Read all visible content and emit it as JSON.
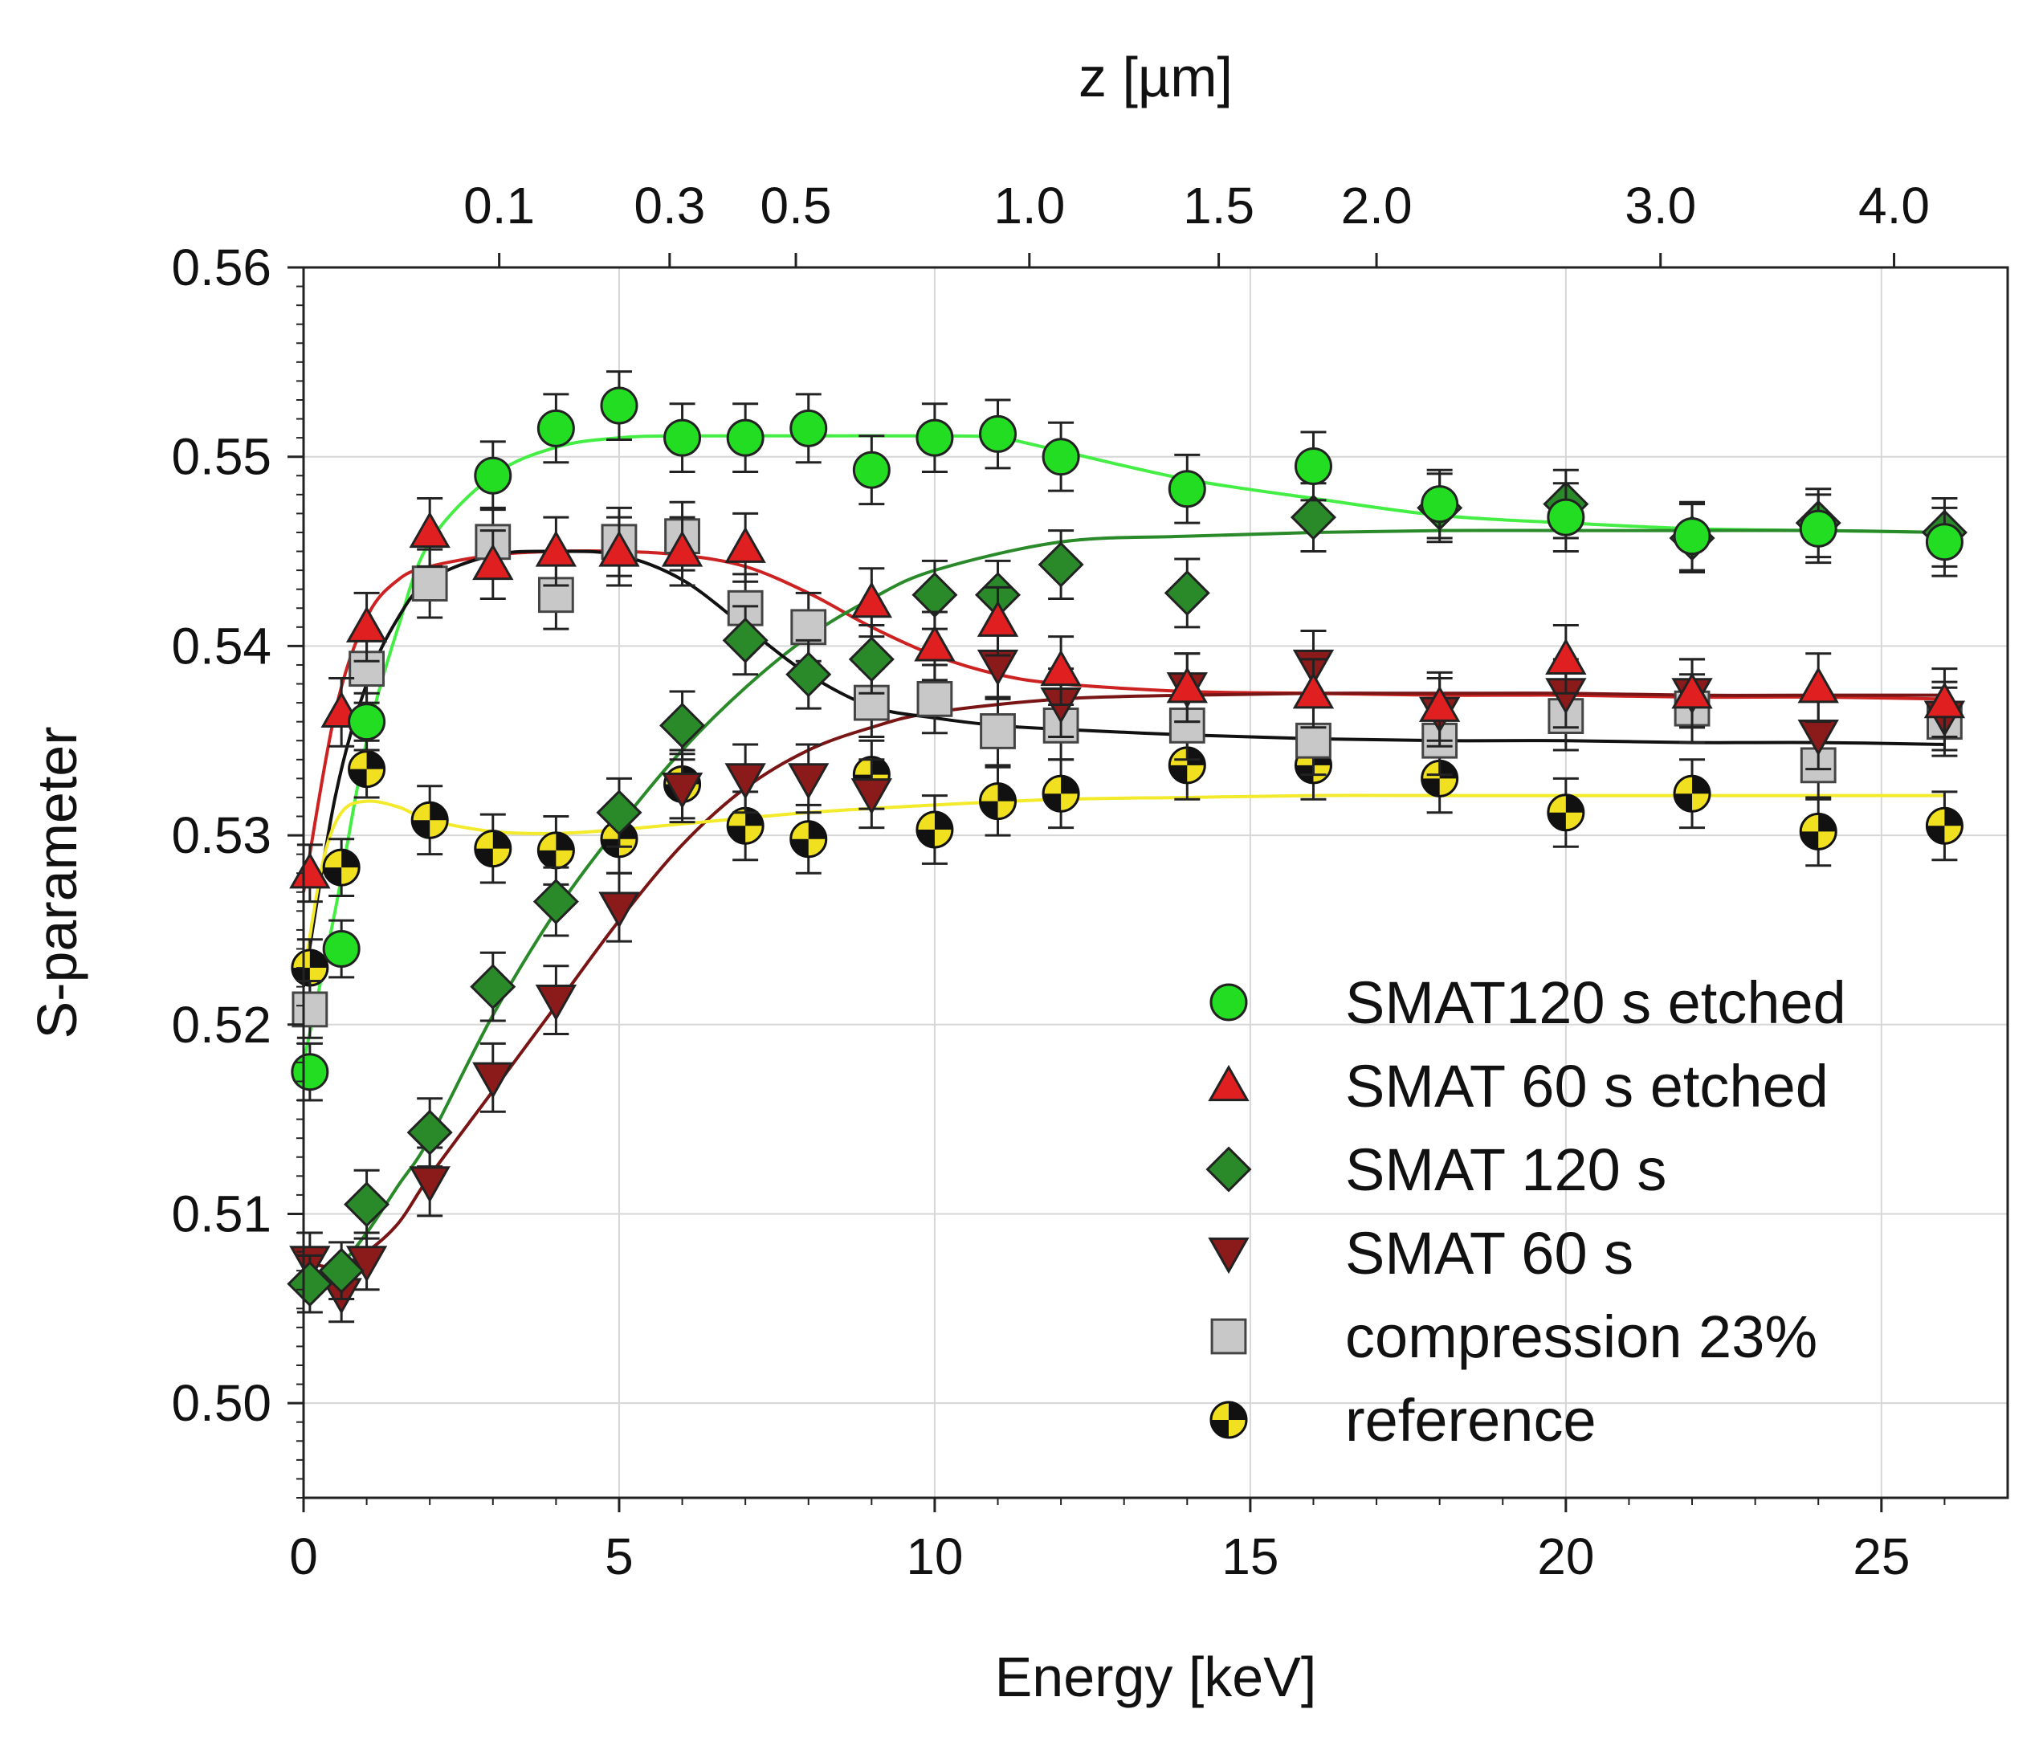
{
  "chart_data": {
    "type": "scatter",
    "title": "",
    "xlabel": "Energy [keV]",
    "ylabel": "S-parameter",
    "top_xlabel": "z [µm]",
    "xlim": [
      0,
      27
    ],
    "ylim": [
      0.495,
      0.56
    ],
    "grid": true,
    "legend_position": "lower-right",
    "x_ticks": [
      0,
      5,
      10,
      15,
      20,
      25
    ],
    "x_tick_labels": [
      "0",
      "5",
      "10",
      "15",
      "20",
      "25"
    ],
    "y_ticks": [
      0.5,
      0.51,
      0.52,
      0.53,
      0.54,
      0.55,
      0.56
    ],
    "y_tick_labels": [
      "0.50",
      "0.51",
      "0.52",
      "0.53",
      "0.54",
      "0.55",
      "0.56"
    ],
    "top_ticks": [
      {
        "label": "0.1",
        "energy": 3.1
      },
      {
        "label": "0.3",
        "energy": 5.8
      },
      {
        "label": "0.5",
        "energy": 7.8
      },
      {
        "label": "1.0",
        "energy": 11.5
      },
      {
        "label": "1.5",
        "energy": 14.5
      },
      {
        "label": "2.0",
        "energy": 17.0
      },
      {
        "label": "3.0",
        "energy": 21.5
      },
      {
        "label": "4.0",
        "energy": 25.2
      }
    ],
    "series": [
      {
        "name": "SMAT120 s etched",
        "marker": "circle",
        "color": "#22dd22",
        "line_color": "#44ee44",
        "x": [
          0.1,
          0.6,
          1,
          3,
          4,
          5,
          6,
          7,
          8,
          9,
          10,
          11,
          12,
          14,
          16,
          18,
          20,
          22,
          24,
          26
        ],
        "y": [
          0.5175,
          0.524,
          0.536,
          0.549,
          0.5515,
          0.5527,
          0.551,
          0.551,
          0.5515,
          0.5493,
          0.551,
          0.5512,
          0.55,
          0.5483,
          0.5495,
          0.5475,
          0.5468,
          0.5458,
          0.5462,
          0.5455
        ],
        "err": [
          0.0015,
          0.0015,
          0.0015,
          0.0018,
          0.0018,
          0.0018,
          0.0018,
          0.0018,
          0.0018,
          0.0018,
          0.0018,
          0.0018,
          0.0018,
          0.0018,
          0.0018,
          0.0018,
          0.0018,
          0.0018,
          0.0018,
          0.0018
        ],
        "fit": {
          "x": [
            0,
            0.5,
            1,
            1.5,
            2,
            3,
            4,
            5,
            6,
            8,
            10,
            11,
            12,
            14,
            16,
            18,
            20,
            22,
            24,
            26
          ],
          "y": [
            0.518,
            0.526,
            0.535,
            0.541,
            0.5455,
            0.549,
            0.5505,
            0.551,
            0.5511,
            0.5511,
            0.5511,
            0.551,
            0.5503,
            0.5488,
            0.5478,
            0.5469,
            0.5465,
            0.5462,
            0.5461,
            0.546
          ]
        }
      },
      {
        "name": "SMAT 60 s etched",
        "marker": "triangle-up",
        "color": "#e02020",
        "line_color": "#cc2222",
        "x": [
          0.1,
          0.6,
          1,
          2,
          3,
          4,
          5,
          6,
          7,
          9,
          10,
          11,
          12,
          14,
          16,
          18,
          20,
          22,
          24,
          26
        ],
        "y": [
          0.528,
          0.5365,
          0.541,
          0.546,
          0.5443,
          0.545,
          0.545,
          0.545,
          0.5452,
          0.5423,
          0.54,
          0.5413,
          0.5387,
          0.5378,
          0.5375,
          0.5368,
          0.5393,
          0.5375,
          0.5378,
          0.537
        ],
        "err": [
          0.0015,
          0.0018,
          0.0018,
          0.0018,
          0.0018,
          0.0018,
          0.0018,
          0.0018,
          0.0018,
          0.0018,
          0.0018,
          0.0018,
          0.0018,
          0.0018,
          0.0018,
          0.0018,
          0.0018,
          0.0018,
          0.0018,
          0.0018
        ],
        "fit": {
          "x": [
            0,
            0.5,
            1,
            1.5,
            2,
            3,
            4,
            5,
            6,
            7,
            8,
            9,
            10,
            11,
            12,
            14,
            16,
            18,
            20,
            22,
            24,
            26
          ],
          "y": [
            0.527,
            0.5365,
            0.5415,
            0.5435,
            0.5442,
            0.5448,
            0.545,
            0.545,
            0.5448,
            0.5442,
            0.5428,
            0.541,
            0.5395,
            0.5385,
            0.538,
            0.5376,
            0.5375,
            0.5374,
            0.5374,
            0.5373,
            0.5373,
            0.5372
          ]
        }
      },
      {
        "name": "SMAT 120 s",
        "marker": "diamond",
        "color": "#2a8a2a",
        "line_color": "#2a8a2a",
        "x": [
          0.1,
          0.6,
          1,
          2,
          3,
          4,
          5,
          6,
          7,
          8,
          9,
          10,
          11,
          12,
          14,
          16,
          18,
          20,
          22,
          24,
          26
        ],
        "y": [
          0.5063,
          0.507,
          0.5105,
          0.5143,
          0.522,
          0.5265,
          0.5312,
          0.5358,
          0.5403,
          0.5385,
          0.5393,
          0.5427,
          0.5427,
          0.5443,
          0.5428,
          0.5468,
          0.5473,
          0.5475,
          0.5457,
          0.5465,
          0.546
        ],
        "err": [
          0.0015,
          0.0015,
          0.0018,
          0.0018,
          0.0018,
          0.0018,
          0.0018,
          0.0018,
          0.0018,
          0.0018,
          0.0018,
          0.0018,
          0.0018,
          0.0018,
          0.0018,
          0.0018,
          0.0018,
          0.0018,
          0.0018,
          0.0018,
          0.0018
        ],
        "fit": {
          "x": [
            0,
            0.5,
            1,
            1.5,
            2,
            3,
            4,
            5,
            6,
            7,
            8,
            9,
            10,
            12,
            14,
            16,
            18,
            20,
            22,
            24,
            26
          ],
          "y": [
            0.506,
            0.507,
            0.509,
            0.5115,
            0.514,
            0.5205,
            0.526,
            0.5305,
            0.5345,
            0.5378,
            0.5405,
            0.5425,
            0.544,
            0.5455,
            0.5458,
            0.546,
            0.5461,
            0.5461,
            0.5461,
            0.5461,
            0.546
          ]
        }
      },
      {
        "name": "SMAT 60 s",
        "marker": "triangle-down",
        "color": "#8b1a1a",
        "line_color": "#7a1515",
        "x": [
          0.1,
          0.6,
          1,
          2,
          3,
          4,
          5,
          6,
          7,
          8,
          9,
          11,
          12,
          14,
          16,
          18,
          20,
          22,
          24,
          26
        ],
        "y": [
          0.5075,
          0.5058,
          0.5075,
          0.5117,
          0.5172,
          0.5213,
          0.5262,
          0.5325,
          0.533,
          0.533,
          0.5322,
          0.539,
          0.537,
          0.5378,
          0.539,
          0.5365,
          0.5375,
          0.5375,
          0.5353,
          0.5363
        ],
        "err": [
          0.0015,
          0.0015,
          0.0015,
          0.0018,
          0.0018,
          0.0018,
          0.0018,
          0.0018,
          0.0018,
          0.0018,
          0.0018,
          0.0018,
          0.0018,
          0.0018,
          0.0018,
          0.0018,
          0.0018,
          0.0018,
          0.0018,
          0.0018
        ],
        "fit": {
          "x": [
            0,
            0.5,
            1,
            1.5,
            2,
            3,
            4,
            5,
            6,
            7,
            8,
            9,
            10,
            12,
            14,
            16,
            18,
            20,
            22,
            24,
            26
          ],
          "y": [
            0.5075,
            0.5072,
            0.508,
            0.5095,
            0.512,
            0.5165,
            0.521,
            0.5255,
            0.5295,
            0.5325,
            0.5345,
            0.5357,
            0.5365,
            0.5372,
            0.5374,
            0.5375,
            0.5375,
            0.5375,
            0.5374,
            0.5374,
            0.5374
          ]
        }
      },
      {
        "name": "compression 23%",
        "marker": "square",
        "color": "#c8c8c8",
        "line_color": "#111111",
        "x": [
          0.1,
          1,
          2,
          3,
          4,
          5,
          6,
          7,
          8,
          9,
          10,
          11,
          12,
          14,
          16,
          18,
          20,
          22,
          24,
          26
        ],
        "y": [
          0.5208,
          0.5388,
          0.5433,
          0.5455,
          0.5427,
          0.5455,
          0.5458,
          0.542,
          0.541,
          0.537,
          0.5372,
          0.5355,
          0.5358,
          0.5358,
          0.535,
          0.535,
          0.5363,
          0.5367,
          0.5337,
          0.536
        ],
        "err": [
          0.0015,
          0.0018,
          0.0018,
          0.0018,
          0.0018,
          0.0018,
          0.0018,
          0.0018,
          0.0018,
          0.0018,
          0.0018,
          0.0018,
          0.0018,
          0.0018,
          0.0018,
          0.0018,
          0.0018,
          0.0018,
          0.0018,
          0.0018
        ],
        "fit": {
          "x": [
            0,
            0.5,
            1,
            1.5,
            2,
            3,
            4,
            5,
            6,
            7,
            8,
            9,
            10,
            11,
            12,
            14,
            16,
            18,
            20,
            22,
            24,
            26
          ],
          "y": [
            0.522,
            0.532,
            0.538,
            0.5415,
            0.5435,
            0.5448,
            0.545,
            0.5448,
            0.5435,
            0.541,
            0.5385,
            0.5368,
            0.5362,
            0.5358,
            0.5356,
            0.5353,
            0.5351,
            0.535,
            0.535,
            0.5349,
            0.5349,
            0.5348
          ]
        }
      },
      {
        "name": "reference",
        "marker": "circle-quartered",
        "color": "#f0e020",
        "line_color": "#f2ea2a",
        "x": [
          0.1,
          0.6,
          1,
          2,
          3,
          4,
          5,
          6,
          7,
          8,
          9,
          10,
          11,
          12,
          14,
          16,
          18,
          20,
          22,
          24,
          26
        ],
        "y": [
          0.523,
          0.5283,
          0.5335,
          0.5308,
          0.5293,
          0.5292,
          0.5298,
          0.5327,
          0.5305,
          0.5298,
          0.5332,
          0.5303,
          0.5318,
          0.5322,
          0.5337,
          0.5337,
          0.533,
          0.5312,
          0.5322,
          0.5302,
          0.5305
        ],
        "err": [
          0.0015,
          0.0015,
          0.0015,
          0.0018,
          0.0018,
          0.0018,
          0.0018,
          0.0018,
          0.0018,
          0.0018,
          0.0018,
          0.0018,
          0.0018,
          0.0018,
          0.0018,
          0.0018,
          0.0018,
          0.0018,
          0.0018,
          0.0018,
          0.0018
        ],
        "fit": {
          "x": [
            0,
            0.3,
            0.6,
            1,
            1.5,
            2,
            3,
            4,
            5,
            6,
            8,
            10,
            12,
            14,
            16,
            18,
            20,
            22,
            24,
            26
          ],
          "y": [
            0.5225,
            0.5285,
            0.5312,
            0.5318,
            0.5315,
            0.5308,
            0.5302,
            0.5301,
            0.5303,
            0.5306,
            0.5312,
            0.5316,
            0.5319,
            0.532,
            0.5321,
            0.5321,
            0.5321,
            0.5321,
            0.5321,
            0.5321
          ]
        }
      }
    ]
  }
}
